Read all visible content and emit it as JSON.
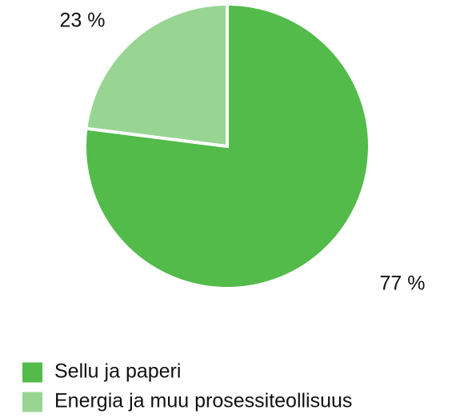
{
  "chart_data": {
    "type": "pie",
    "categories": [
      "Sellu ja paperi",
      "Energia ja muu prosessiteollisuus"
    ],
    "values": [
      77,
      23
    ],
    "value_labels": [
      "77 %",
      "23 %"
    ],
    "colors": [
      "#52bb4a",
      "#98d593"
    ],
    "legend": "bottom"
  }
}
